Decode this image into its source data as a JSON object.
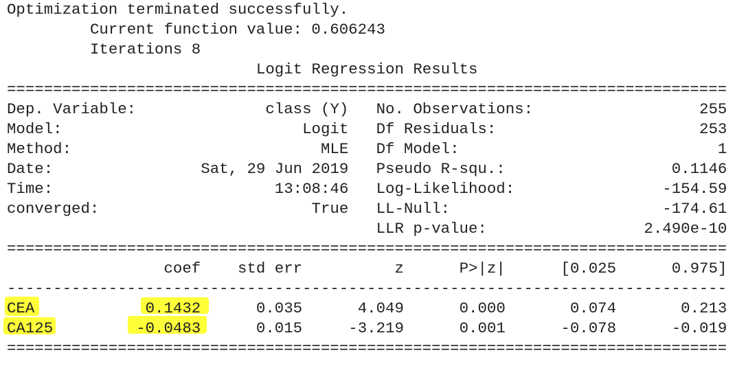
{
  "header": {
    "lines": [
      "Optimization terminated successfully.",
      "Current function value: 0.606243",
      "Iterations 8"
    ],
    "title": "Logit Regression Results"
  },
  "separators": {
    "double": "==============================================================================",
    "single": "------------------------------------------------------------------------------"
  },
  "summary": {
    "left": [
      [
        "Dep. Variable:",
        "class (Y)"
      ],
      [
        "Model:",
        "Logit"
      ],
      [
        "Method:",
        "MLE"
      ],
      [
        "Date:",
        "Sat, 29 Jun 2019"
      ],
      [
        "Time:",
        "13:08:46"
      ],
      [
        "converged:",
        "True"
      ]
    ],
    "right": [
      [
        "No. Observations:",
        "255"
      ],
      [
        "Df Residuals:",
        "253"
      ],
      [
        "Df Model:",
        "1"
      ],
      [
        "Pseudo R-squ.:",
        "0.1146"
      ],
      [
        "Log-Likelihood:",
        "-154.59"
      ],
      [
        "LL-Null:",
        "-174.61"
      ],
      [
        "LLR p-value:",
        "2.490e-10"
      ]
    ]
  },
  "coefficients": {
    "columns": [
      "coef",
      "std err",
      "z",
      "P>|z|",
      "[0.025",
      "0.975]"
    ],
    "rows": [
      {
        "name": "CEA",
        "values": [
          "0.1432",
          "0.035",
          "4.049",
          "0.000",
          "0.074",
          "0.213"
        ]
      },
      {
        "name": "CA125",
        "values": [
          "-0.0483",
          "0.015",
          "-3.219",
          "0.001",
          "-0.078",
          "-0.019"
        ]
      }
    ]
  }
}
